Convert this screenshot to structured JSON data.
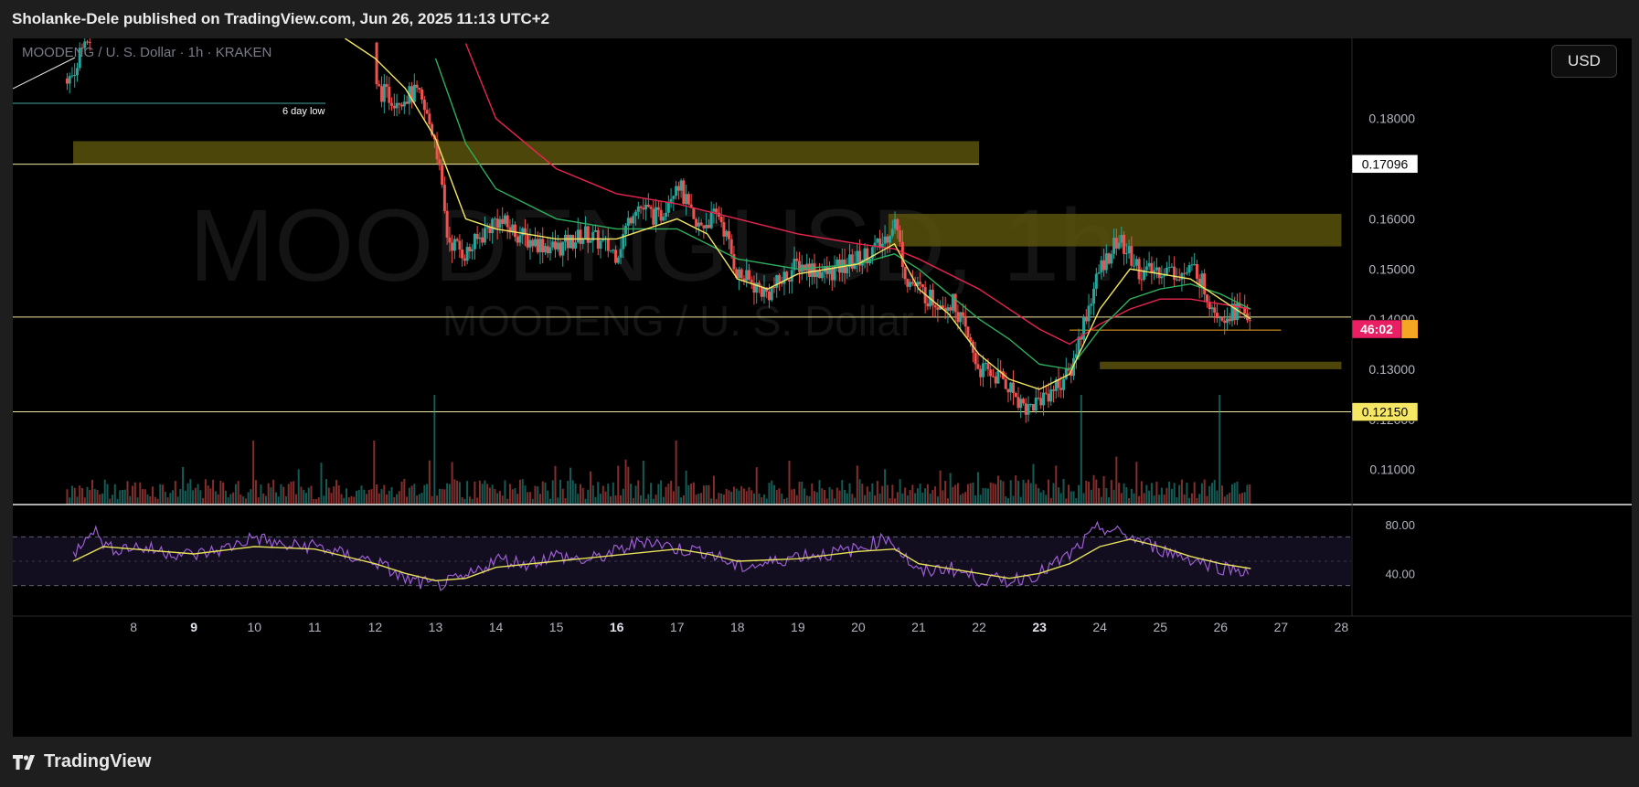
{
  "header": {
    "published": "Sholanke-Dele published on TradingView.com, Jun 26, 2025 11:13 UTC+2"
  },
  "toolbar": {
    "currency_label": "USD"
  },
  "footer": {
    "brand": "TradingView"
  },
  "legend": {
    "symbol_line": "MOODENG / U. S. Dollar · 1h · KRAKEN"
  },
  "watermark": {
    "ticker": "MOODENGUSD, 1h",
    "name": "MOODENG / U. S. Dollar"
  },
  "annotations": {
    "six_day_low": "6 day low"
  },
  "price_axis": {
    "ticks": [
      "0.18000",
      "0.16000",
      "0.15000",
      "0.14000",
      "0.13000",
      "0.12000",
      "0.11000"
    ],
    "price_labels": [
      {
        "text": "0.17096",
        "style": "white"
      },
      {
        "text": "0.12150",
        "style": "yellow"
      },
      {
        "text": "46:02",
        "style": "countdown"
      }
    ]
  },
  "rsi_axis": {
    "ticks": [
      "80.00",
      "40.00"
    ]
  },
  "time_axis": {
    "ticks": [
      "8",
      "9",
      "10",
      "11",
      "12",
      "13",
      "14",
      "15",
      "16",
      "17",
      "18",
      "19",
      "20",
      "21",
      "22",
      "23",
      "24",
      "25",
      "26",
      "27",
      "28"
    ]
  },
  "colors": {
    "up": "#26a69a",
    "down": "#ef5350",
    "ema_fast": "#f5e663",
    "ema_mid": "#2fae5e",
    "ema_slow": "#e8244f",
    "rsi": "#9c5ed3",
    "rsi_ma": "#e6e05a",
    "zone": "#5a520d",
    "countdown": "#e91e63",
    "last_price": "#f5a623"
  },
  "chart_data": {
    "type": "candlestick",
    "symbol": "MOODENG / U. S. Dollar",
    "interval": "1h",
    "exchange": "KRAKEN",
    "x": [
      "8",
      "9",
      "10",
      "11",
      "12",
      "13",
      "14",
      "15",
      "16",
      "17",
      "18",
      "19",
      "20",
      "21",
      "22",
      "23",
      "24",
      "25",
      "26",
      "27",
      "28"
    ],
    "ylim": [
      0.103,
      0.196
    ],
    "price_path": [
      [
        "12",
        0.186
      ],
      [
        "12.3",
        0.184
      ],
      [
        "12.7",
        0.185
      ],
      [
        "13",
        0.176
      ],
      [
        "13.2",
        0.156
      ],
      [
        "13.5",
        0.153
      ],
      [
        "14",
        0.16
      ],
      [
        "14.5",
        0.156
      ],
      [
        "15",
        0.154
      ],
      [
        "15.5",
        0.157
      ],
      [
        "16",
        0.153
      ],
      [
        "16.3",
        0.163
      ],
      [
        "16.7",
        0.16
      ],
      [
        "17",
        0.168
      ],
      [
        "17.3",
        0.158
      ],
      [
        "17.7",
        0.161
      ],
      [
        "18",
        0.149
      ],
      [
        "18.5",
        0.145
      ],
      [
        "19",
        0.151
      ],
      [
        "19.5",
        0.149
      ],
      [
        "20",
        0.152
      ],
      [
        "20.4",
        0.155
      ],
      [
        "20.6",
        0.16
      ],
      [
        "20.8",
        0.148
      ],
      [
        "21.2",
        0.144
      ],
      [
        "21.6",
        0.143
      ],
      [
        "22",
        0.13
      ],
      [
        "22.4",
        0.128
      ],
      [
        "22.8",
        0.122
      ],
      [
        "23",
        0.124
      ],
      [
        "23.5",
        0.129
      ],
      [
        "23.7",
        0.138
      ],
      [
        "24",
        0.15
      ],
      [
        "24.3",
        0.156
      ],
      [
        "24.7",
        0.149
      ],
      [
        "25",
        0.15
      ],
      [
        "25.4",
        0.149
      ],
      [
        "25.6",
        0.15
      ],
      [
        "25.8",
        0.144
      ],
      [
        "26",
        0.141
      ],
      [
        "26.3",
        0.142
      ],
      [
        "26.5",
        0.14
      ]
    ],
    "ema_fast": [
      [
        "11.5",
        0.196
      ],
      [
        "12",
        0.192
      ],
      [
        "12.5",
        0.186
      ],
      [
        "13",
        0.176
      ],
      [
        "13.5",
        0.16
      ],
      [
        "14",
        0.158
      ],
      [
        "15",
        0.156
      ],
      [
        "16",
        0.156
      ],
      [
        "17",
        0.16
      ],
      [
        "17.5",
        0.157
      ],
      [
        "18",
        0.148
      ],
      [
        "18.5",
        0.146
      ],
      [
        "19",
        0.149
      ],
      [
        "20",
        0.151
      ],
      [
        "20.6",
        0.155
      ],
      [
        "21",
        0.146
      ],
      [
        "21.5",
        0.141
      ],
      [
        "22",
        0.133
      ],
      [
        "22.5",
        0.128
      ],
      [
        "23",
        0.126
      ],
      [
        "23.5",
        0.129
      ],
      [
        "24",
        0.142
      ],
      [
        "24.5",
        0.15
      ],
      [
        "25",
        0.149
      ],
      [
        "25.5",
        0.148
      ],
      [
        "26",
        0.144
      ],
      [
        "26.5",
        0.14
      ]
    ],
    "ema_mid": [
      [
        "13",
        0.192
      ],
      [
        "13.5",
        0.175
      ],
      [
        "14",
        0.166
      ],
      [
        "15",
        0.16
      ],
      [
        "16",
        0.158
      ],
      [
        "17",
        0.158
      ],
      [
        "18",
        0.152
      ],
      [
        "19",
        0.15
      ],
      [
        "20",
        0.151
      ],
      [
        "20.6",
        0.153
      ],
      [
        "21",
        0.15
      ],
      [
        "22",
        0.14
      ],
      [
        "22.5",
        0.136
      ],
      [
        "23",
        0.131
      ],
      [
        "23.5",
        0.13
      ],
      [
        "24",
        0.138
      ],
      [
        "24.5",
        0.144
      ],
      [
        "25",
        0.146
      ],
      [
        "25.5",
        0.147
      ],
      [
        "26",
        0.145
      ],
      [
        "26.5",
        0.142
      ]
    ],
    "ema_slow": [
      [
        "13.5",
        0.195
      ],
      [
        "14",
        0.18
      ],
      [
        "15",
        0.17
      ],
      [
        "16",
        0.165
      ],
      [
        "17",
        0.163
      ],
      [
        "18",
        0.16
      ],
      [
        "19",
        0.157
      ],
      [
        "20",
        0.155
      ],
      [
        "20.6",
        0.154
      ],
      [
        "21",
        0.152
      ],
      [
        "22",
        0.146
      ],
      [
        "23",
        0.138
      ],
      [
        "23.5",
        0.135
      ],
      [
        "24",
        0.139
      ],
      [
        "24.5",
        0.142
      ],
      [
        "25",
        0.144
      ],
      [
        "25.5",
        0.144
      ],
      [
        "26",
        0.143
      ],
      [
        "26.5",
        0.142
      ]
    ],
    "horizontal_lines": [
      0.1709,
      0.1404,
      0.1215,
      0.1378
    ],
    "zones": [
      {
        "from_x": "7",
        "to_x": "22",
        "y_low": 0.1709,
        "y_high": 0.1755
      },
      {
        "from_x": "20.5",
        "to_x": "28",
        "y_low": 0.1545,
        "y_high": 0.161
      },
      {
        "from_x": "24",
        "to_x": "28",
        "y_low": 0.13,
        "y_high": 0.1315
      }
    ],
    "volume_spikes": [
      [
        "13",
        "high"
      ],
      [
        "23.7",
        "high"
      ],
      [
        "26",
        "high"
      ],
      [
        "12",
        "medium"
      ],
      [
        "10",
        "medium"
      ],
      [
        "17",
        "medium"
      ]
    ],
    "rsi": {
      "ylim": [
        20,
        95
      ],
      "levels": [
        70,
        30
      ],
      "values": [
        [
          "7",
          55
        ],
        [
          "7.3",
          78
        ],
        [
          "7.6",
          60
        ],
        [
          "8",
          62
        ],
        [
          "8.5",
          58
        ],
        [
          "9",
          55
        ],
        [
          "9.5",
          60
        ],
        [
          "10",
          70
        ],
        [
          "10.5",
          62
        ],
        [
          "11",
          63
        ],
        [
          "11.5",
          55
        ],
        [
          "12",
          50
        ],
        [
          "12.5",
          35
        ],
        [
          "13",
          30
        ],
        [
          "13.5",
          36
        ],
        [
          "14",
          52
        ],
        [
          "14.5",
          48
        ],
        [
          "15",
          55
        ],
        [
          "15.5",
          50
        ],
        [
          "16",
          58
        ],
        [
          "16.5",
          68
        ],
        [
          "17",
          60
        ],
        [
          "17.5",
          58
        ],
        [
          "18",
          45
        ],
        [
          "18.5",
          48
        ],
        [
          "19",
          55
        ],
        [
          "19.5",
          56
        ],
        [
          "20",
          60
        ],
        [
          "20.5",
          70
        ],
        [
          "21",
          40
        ],
        [
          "21.5",
          45
        ],
        [
          "22",
          35
        ],
        [
          "22.5",
          34
        ],
        [
          "23",
          40
        ],
        [
          "23.5",
          55
        ],
        [
          "24",
          78
        ],
        [
          "24.5",
          70
        ],
        [
          "25",
          60
        ],
        [
          "25.5",
          52
        ],
        [
          "26",
          45
        ],
        [
          "26.5",
          42
        ]
      ],
      "ma": [
        [
          "7",
          50
        ],
        [
          "7.5",
          62
        ],
        [
          "8",
          60
        ],
        [
          "9",
          56
        ],
        [
          "10",
          62
        ],
        [
          "11",
          60
        ],
        [
          "12",
          48
        ],
        [
          "12.5",
          40
        ],
        [
          "13",
          34
        ],
        [
          "13.5",
          36
        ],
        [
          "14",
          45
        ],
        [
          "15",
          50
        ],
        [
          "16",
          55
        ],
        [
          "17",
          60
        ],
        [
          "17.5",
          56
        ],
        [
          "18",
          50
        ],
        [
          "19",
          52
        ],
        [
          "20",
          58
        ],
        [
          "20.6",
          60
        ],
        [
          "21",
          48
        ],
        [
          "22",
          40
        ],
        [
          "22.5",
          36
        ],
        [
          "23",
          40
        ],
        [
          "23.5",
          48
        ],
        [
          "24",
          62
        ],
        [
          "24.5",
          68
        ],
        [
          "25",
          62
        ],
        [
          "25.5",
          54
        ],
        [
          "26",
          48
        ],
        [
          "26.5",
          44
        ]
      ]
    }
  }
}
